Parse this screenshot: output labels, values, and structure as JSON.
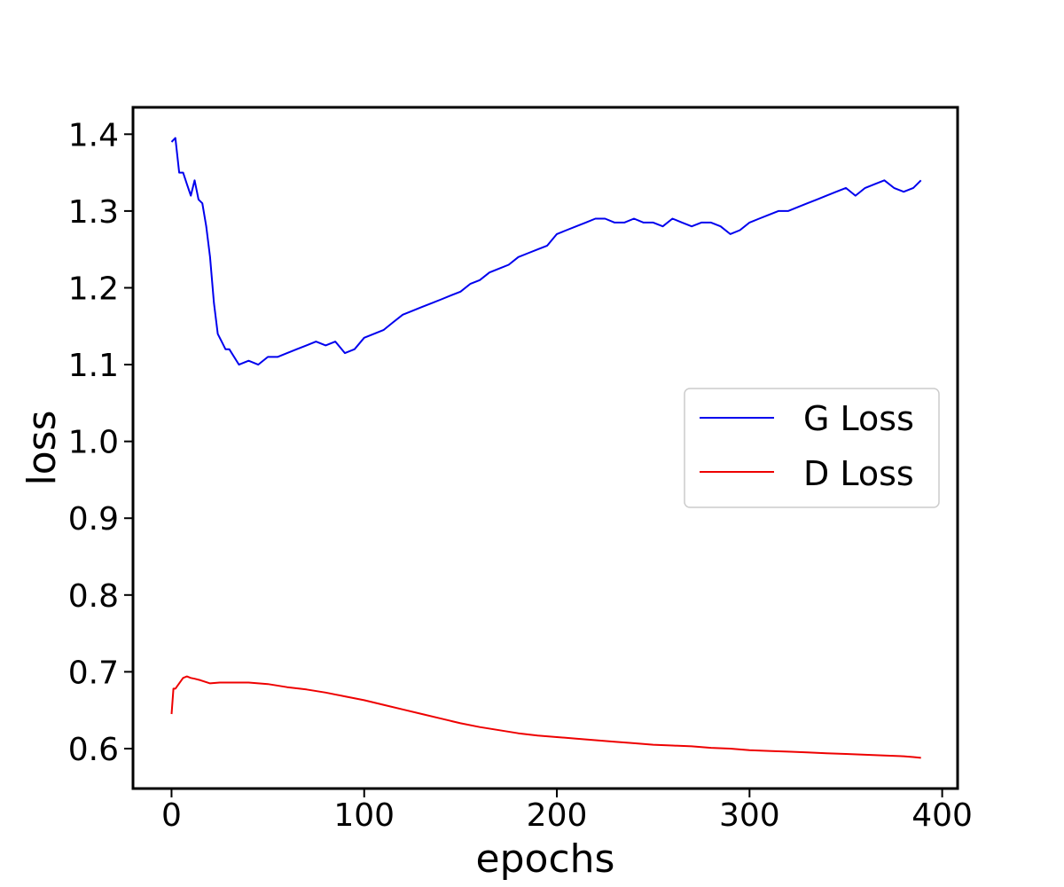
{
  "chart_data": {
    "type": "line",
    "title": "",
    "xlabel": "epochs",
    "ylabel": "loss",
    "xlim": [
      -20,
      408
    ],
    "ylim": [
      0.548,
      1.435
    ],
    "xticks": [
      0,
      100,
      200,
      300,
      400
    ],
    "yticks": [
      0.6,
      0.7,
      0.8,
      0.9,
      1.0,
      1.1,
      1.2,
      1.3,
      1.4
    ],
    "xtick_labels": [
      "0",
      "100",
      "200",
      "300",
      "400"
    ],
    "ytick_labels": [
      "0.6",
      "0.7",
      "0.8",
      "0.9",
      "1.0",
      "1.1",
      "1.2",
      "1.3",
      "1.4"
    ],
    "grid": false,
    "legend_position": "center-right",
    "series": [
      {
        "name": "G Loss",
        "color": "#0000ee",
        "x": [
          0,
          2,
          4,
          6,
          8,
          10,
          12,
          14,
          16,
          18,
          20,
          22,
          24,
          26,
          28,
          30,
          35,
          40,
          45,
          50,
          55,
          60,
          65,
          70,
          75,
          80,
          85,
          90,
          95,
          100,
          105,
          110,
          115,
          120,
          125,
          130,
          135,
          140,
          145,
          150,
          155,
          160,
          165,
          170,
          175,
          180,
          185,
          190,
          195,
          200,
          205,
          210,
          215,
          220,
          225,
          230,
          235,
          240,
          245,
          250,
          255,
          260,
          265,
          270,
          275,
          280,
          285,
          290,
          295,
          300,
          305,
          310,
          315,
          320,
          325,
          330,
          335,
          340,
          345,
          350,
          355,
          360,
          365,
          370,
          375,
          380,
          385,
          389
        ],
        "y": [
          1.39,
          1.395,
          1.35,
          1.35,
          1.335,
          1.32,
          1.34,
          1.315,
          1.31,
          1.28,
          1.24,
          1.18,
          1.14,
          1.13,
          1.12,
          1.12,
          1.1,
          1.105,
          1.1,
          1.11,
          1.11,
          1.115,
          1.12,
          1.125,
          1.13,
          1.125,
          1.13,
          1.115,
          1.12,
          1.135,
          1.14,
          1.145,
          1.155,
          1.165,
          1.17,
          1.175,
          1.18,
          1.185,
          1.19,
          1.195,
          1.205,
          1.21,
          1.22,
          1.225,
          1.23,
          1.24,
          1.245,
          1.25,
          1.255,
          1.27,
          1.275,
          1.28,
          1.285,
          1.29,
          1.29,
          1.285,
          1.285,
          1.29,
          1.285,
          1.285,
          1.28,
          1.29,
          1.285,
          1.28,
          1.285,
          1.285,
          1.28,
          1.27,
          1.275,
          1.285,
          1.29,
          1.295,
          1.3,
          1.3,
          1.305,
          1.31,
          1.315,
          1.32,
          1.325,
          1.33,
          1.32,
          1.33,
          1.335,
          1.34,
          1.33,
          1.325,
          1.33,
          1.34
        ]
      },
      {
        "name": "D Loss",
        "color": "#ee0000",
        "x": [
          0,
          1,
          2,
          4,
          6,
          8,
          10,
          12,
          15,
          20,
          25,
          30,
          40,
          50,
          60,
          70,
          80,
          90,
          100,
          110,
          120,
          130,
          140,
          150,
          160,
          170,
          180,
          190,
          200,
          210,
          220,
          230,
          240,
          250,
          260,
          270,
          280,
          290,
          300,
          310,
          320,
          330,
          340,
          350,
          360,
          370,
          380,
          385,
          389
        ],
        "y": [
          0.645,
          0.678,
          0.678,
          0.685,
          0.692,
          0.694,
          0.692,
          0.691,
          0.689,
          0.685,
          0.686,
          0.686,
          0.686,
          0.684,
          0.68,
          0.677,
          0.673,
          0.668,
          0.663,
          0.657,
          0.651,
          0.645,
          0.639,
          0.633,
          0.628,
          0.624,
          0.62,
          0.617,
          0.615,
          0.613,
          0.611,
          0.609,
          0.607,
          0.605,
          0.604,
          0.603,
          0.601,
          0.6,
          0.598,
          0.597,
          0.596,
          0.595,
          0.594,
          0.593,
          0.592,
          0.591,
          0.59,
          0.589,
          0.588
        ]
      }
    ]
  }
}
